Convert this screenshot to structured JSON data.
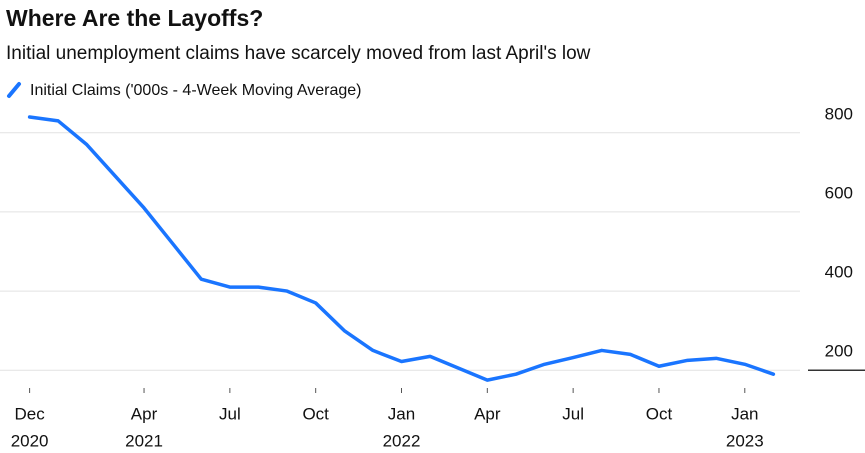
{
  "chart_data": {
    "type": "line",
    "title": "Where Are the Layoffs?",
    "subtitle": "Initial unemployment claims have scarcely moved from last April's low",
    "x": [
      "2020-12",
      "2021-01",
      "2021-02",
      "2021-03",
      "2021-04",
      "2021-05",
      "2021-06",
      "2021-07",
      "2021-08",
      "2021-09",
      "2021-10",
      "2021-11",
      "2021-12",
      "2022-01",
      "2022-02",
      "2022-03",
      "2022-04",
      "2022-05",
      "2022-06",
      "2022-07",
      "2022-08",
      "2022-09",
      "2022-10",
      "2022-11",
      "2022-12",
      "2023-01",
      "2023-02"
    ],
    "series": [
      {
        "name": "Initial Claims ('000s - 4-Week Moving Average)",
        "color": "#1a75ff",
        "values": [
          840,
          830,
          770,
          690,
          610,
          520,
          430,
          410,
          410,
          400,
          370,
          300,
          250,
          222,
          235,
          205,
          175,
          190,
          215,
          232,
          250,
          240,
          210,
          225,
          230,
          215,
          190
        ]
      }
    ],
    "xlim": [
      "2020-11",
      "2023-03"
    ],
    "xticks": [
      {
        "value": "2020-12",
        "label": "Dec"
      },
      {
        "value": "2021-04",
        "label": "Apr"
      },
      {
        "value": "2021-07",
        "label": "Jul"
      },
      {
        "value": "2021-10",
        "label": "Oct"
      },
      {
        "value": "2022-01",
        "label": "Jan"
      },
      {
        "value": "2022-04",
        "label": "Apr"
      },
      {
        "value": "2022-07",
        "label": "Jul"
      },
      {
        "value": "2022-10",
        "label": "Oct"
      },
      {
        "value": "2023-01",
        "label": "Jan"
      }
    ],
    "year_labels": [
      {
        "value": "2020-12",
        "label": "2020"
      },
      {
        "value": "2021-04",
        "label": "2021"
      },
      {
        "value": "2022-01",
        "label": "2022"
      },
      {
        "value": "2023-01",
        "label": "2023"
      }
    ],
    "ylim": [
      150,
      850
    ],
    "yticks": [
      200,
      400,
      600,
      800
    ],
    "grid": true
  }
}
